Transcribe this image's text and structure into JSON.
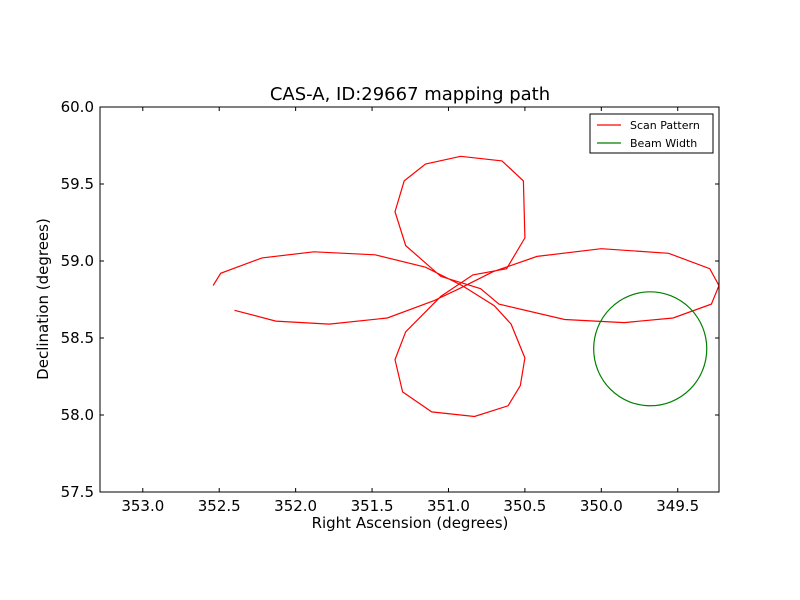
{
  "chart_data": {
    "type": "line",
    "title": "CAS-A, ID:29667 mapping path",
    "xlabel": "Right Ascension (degrees)",
    "ylabel": "Declination (degrees)",
    "xlim": [
      353.28,
      349.23
    ],
    "ylim": [
      57.5,
      60.0
    ],
    "x_inverted": true,
    "xticks": [
      353.0,
      352.5,
      352.0,
      351.5,
      351.0,
      350.5,
      350.0,
      349.5
    ],
    "xtick_labels": [
      "353.0",
      "352.5",
      "352.0",
      "351.5",
      "351.0",
      "350.5",
      "350.0",
      "349.5"
    ],
    "yticks": [
      57.5,
      58.0,
      58.5,
      59.0,
      59.5,
      60.0
    ],
    "ytick_labels": [
      "57.5",
      "58.0",
      "58.5",
      "59.0",
      "59.5",
      "60.0"
    ],
    "grid": false,
    "legend_position": "top-right",
    "series": [
      {
        "name": "Scan Pattern",
        "color": "#ff0000",
        "kind": "line",
        "points": [
          [
            352.54,
            58.84
          ],
          [
            352.49,
            58.92
          ],
          [
            352.22,
            59.02
          ],
          [
            351.88,
            59.06
          ],
          [
            351.48,
            59.04
          ],
          [
            351.15,
            58.96
          ],
          [
            350.91,
            58.84
          ],
          [
            350.7,
            58.71
          ],
          [
            350.59,
            58.59
          ],
          [
            350.5,
            58.37
          ],
          [
            350.53,
            58.19
          ],
          [
            350.61,
            58.06
          ],
          [
            350.83,
            57.99
          ],
          [
            351.11,
            58.02
          ],
          [
            351.3,
            58.15
          ],
          [
            351.35,
            58.36
          ],
          [
            351.28,
            58.54
          ],
          [
            351.05,
            58.77
          ],
          [
            350.84,
            58.91
          ],
          [
            350.62,
            58.95
          ],
          [
            350.5,
            59.15
          ],
          [
            350.51,
            59.52
          ],
          [
            350.65,
            59.65
          ],
          [
            350.92,
            59.68
          ],
          [
            351.15,
            59.63
          ],
          [
            351.29,
            59.52
          ],
          [
            351.35,
            59.32
          ],
          [
            351.28,
            59.1
          ],
          [
            351.05,
            58.9
          ],
          [
            350.79,
            58.82
          ],
          [
            350.67,
            58.72
          ],
          [
            350.24,
            58.62
          ],
          [
            349.85,
            58.6
          ],
          [
            349.53,
            58.63
          ],
          [
            349.28,
            58.72
          ],
          [
            349.23,
            58.84
          ],
          [
            349.29,
            58.95
          ],
          [
            349.56,
            59.05
          ],
          [
            350.0,
            59.08
          ],
          [
            350.42,
            59.03
          ],
          [
            350.71,
            58.93
          ],
          [
            350.93,
            58.82
          ],
          [
            351.1,
            58.74
          ],
          [
            351.4,
            58.63
          ],
          [
            351.78,
            58.59
          ],
          [
            352.13,
            58.61
          ],
          [
            352.4,
            58.68
          ]
        ]
      },
      {
        "name": "Beam Width",
        "color": "#008000",
        "kind": "circle",
        "center": [
          349.68,
          58.43
        ],
        "radius": 0.37
      }
    ]
  }
}
